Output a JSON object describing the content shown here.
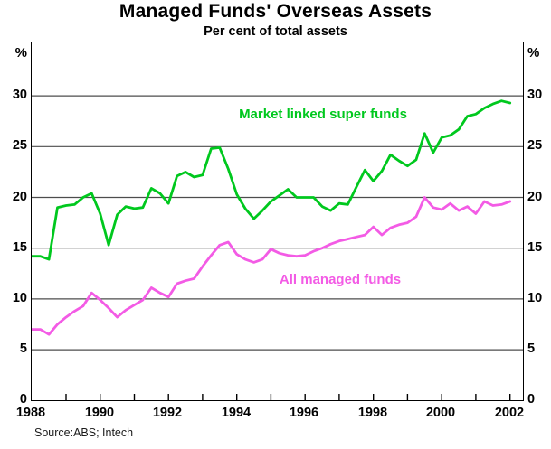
{
  "header": {
    "title": "Managed Funds' Overseas Assets",
    "subtitle": "Per cent of total assets"
  },
  "footer": {
    "source": "Source:ABS; Intech"
  },
  "chart_data": {
    "type": "line",
    "title": "Managed Funds' Overseas Assets",
    "subtitle": "Per cent of total assets",
    "unit_label_left": "%",
    "unit_label_right": "%",
    "grid": "horizontal",
    "grid_color": "#4d4d4d",
    "frame": true,
    "x_start": 1988.0,
    "x_step": 0.25,
    "xlim": [
      1988.0,
      2002.4
    ],
    "ylim": [
      0,
      35.25
    ],
    "yticks": [
      0,
      5,
      10,
      15,
      20,
      25,
      30
    ],
    "year_ticks": [
      1989,
      1990,
      1991,
      1992,
      1993,
      1994,
      1995,
      1996,
      1997,
      1998,
      1999,
      2000,
      2001,
      2002
    ],
    "xtick_label_years": [
      1988,
      1990,
      1992,
      1994,
      1996,
      1998,
      2000,
      2002
    ],
    "legend_position": "inline-labels",
    "series": [
      {
        "name": "Market linked super funds",
        "color": "#00C81E",
        "frequency": "quarterly",
        "values": [
          14.2,
          14.2,
          13.9,
          19.0,
          19.2,
          19.3,
          20.0,
          20.4,
          18.4,
          15.3,
          18.3,
          19.1,
          18.9,
          19.0,
          20.9,
          20.4,
          19.4,
          22.1,
          22.5,
          22.0,
          22.2,
          24.8,
          24.9,
          22.8,
          20.3,
          18.9,
          17.9,
          18.7,
          19.6,
          20.2,
          20.8,
          20.0,
          20.0,
          20.0,
          19.1,
          18.7,
          19.4,
          19.3,
          21.0,
          22.7,
          21.6,
          22.6,
          24.2,
          23.6,
          23.1,
          23.7,
          26.3,
          24.4,
          25.9,
          26.1,
          26.7,
          28.0,
          28.2,
          28.8,
          29.2,
          29.5,
          29.3
        ]
      },
      {
        "name": "All managed funds",
        "color": "#F35BE5",
        "frequency": "quarterly",
        "values": [
          7.0,
          7.0,
          6.5,
          7.5,
          8.2,
          8.8,
          9.3,
          10.6,
          9.9,
          9.1,
          8.2,
          8.9,
          9.4,
          9.9,
          11.1,
          10.6,
          10.2,
          11.5,
          11.8,
          12.0,
          13.2,
          14.3,
          15.3,
          15.6,
          14.4,
          13.9,
          13.6,
          13.9,
          14.9,
          14.5,
          14.3,
          14.2,
          14.3,
          14.7,
          15.0,
          15.4,
          15.7,
          15.9,
          16.1,
          16.3,
          17.1,
          16.3,
          17.0,
          17.3,
          17.5,
          18.1,
          20.0,
          19.0,
          18.8,
          19.4,
          18.7,
          19.1,
          18.4,
          19.6,
          19.2,
          19.3,
          19.6
        ]
      }
    ]
  }
}
